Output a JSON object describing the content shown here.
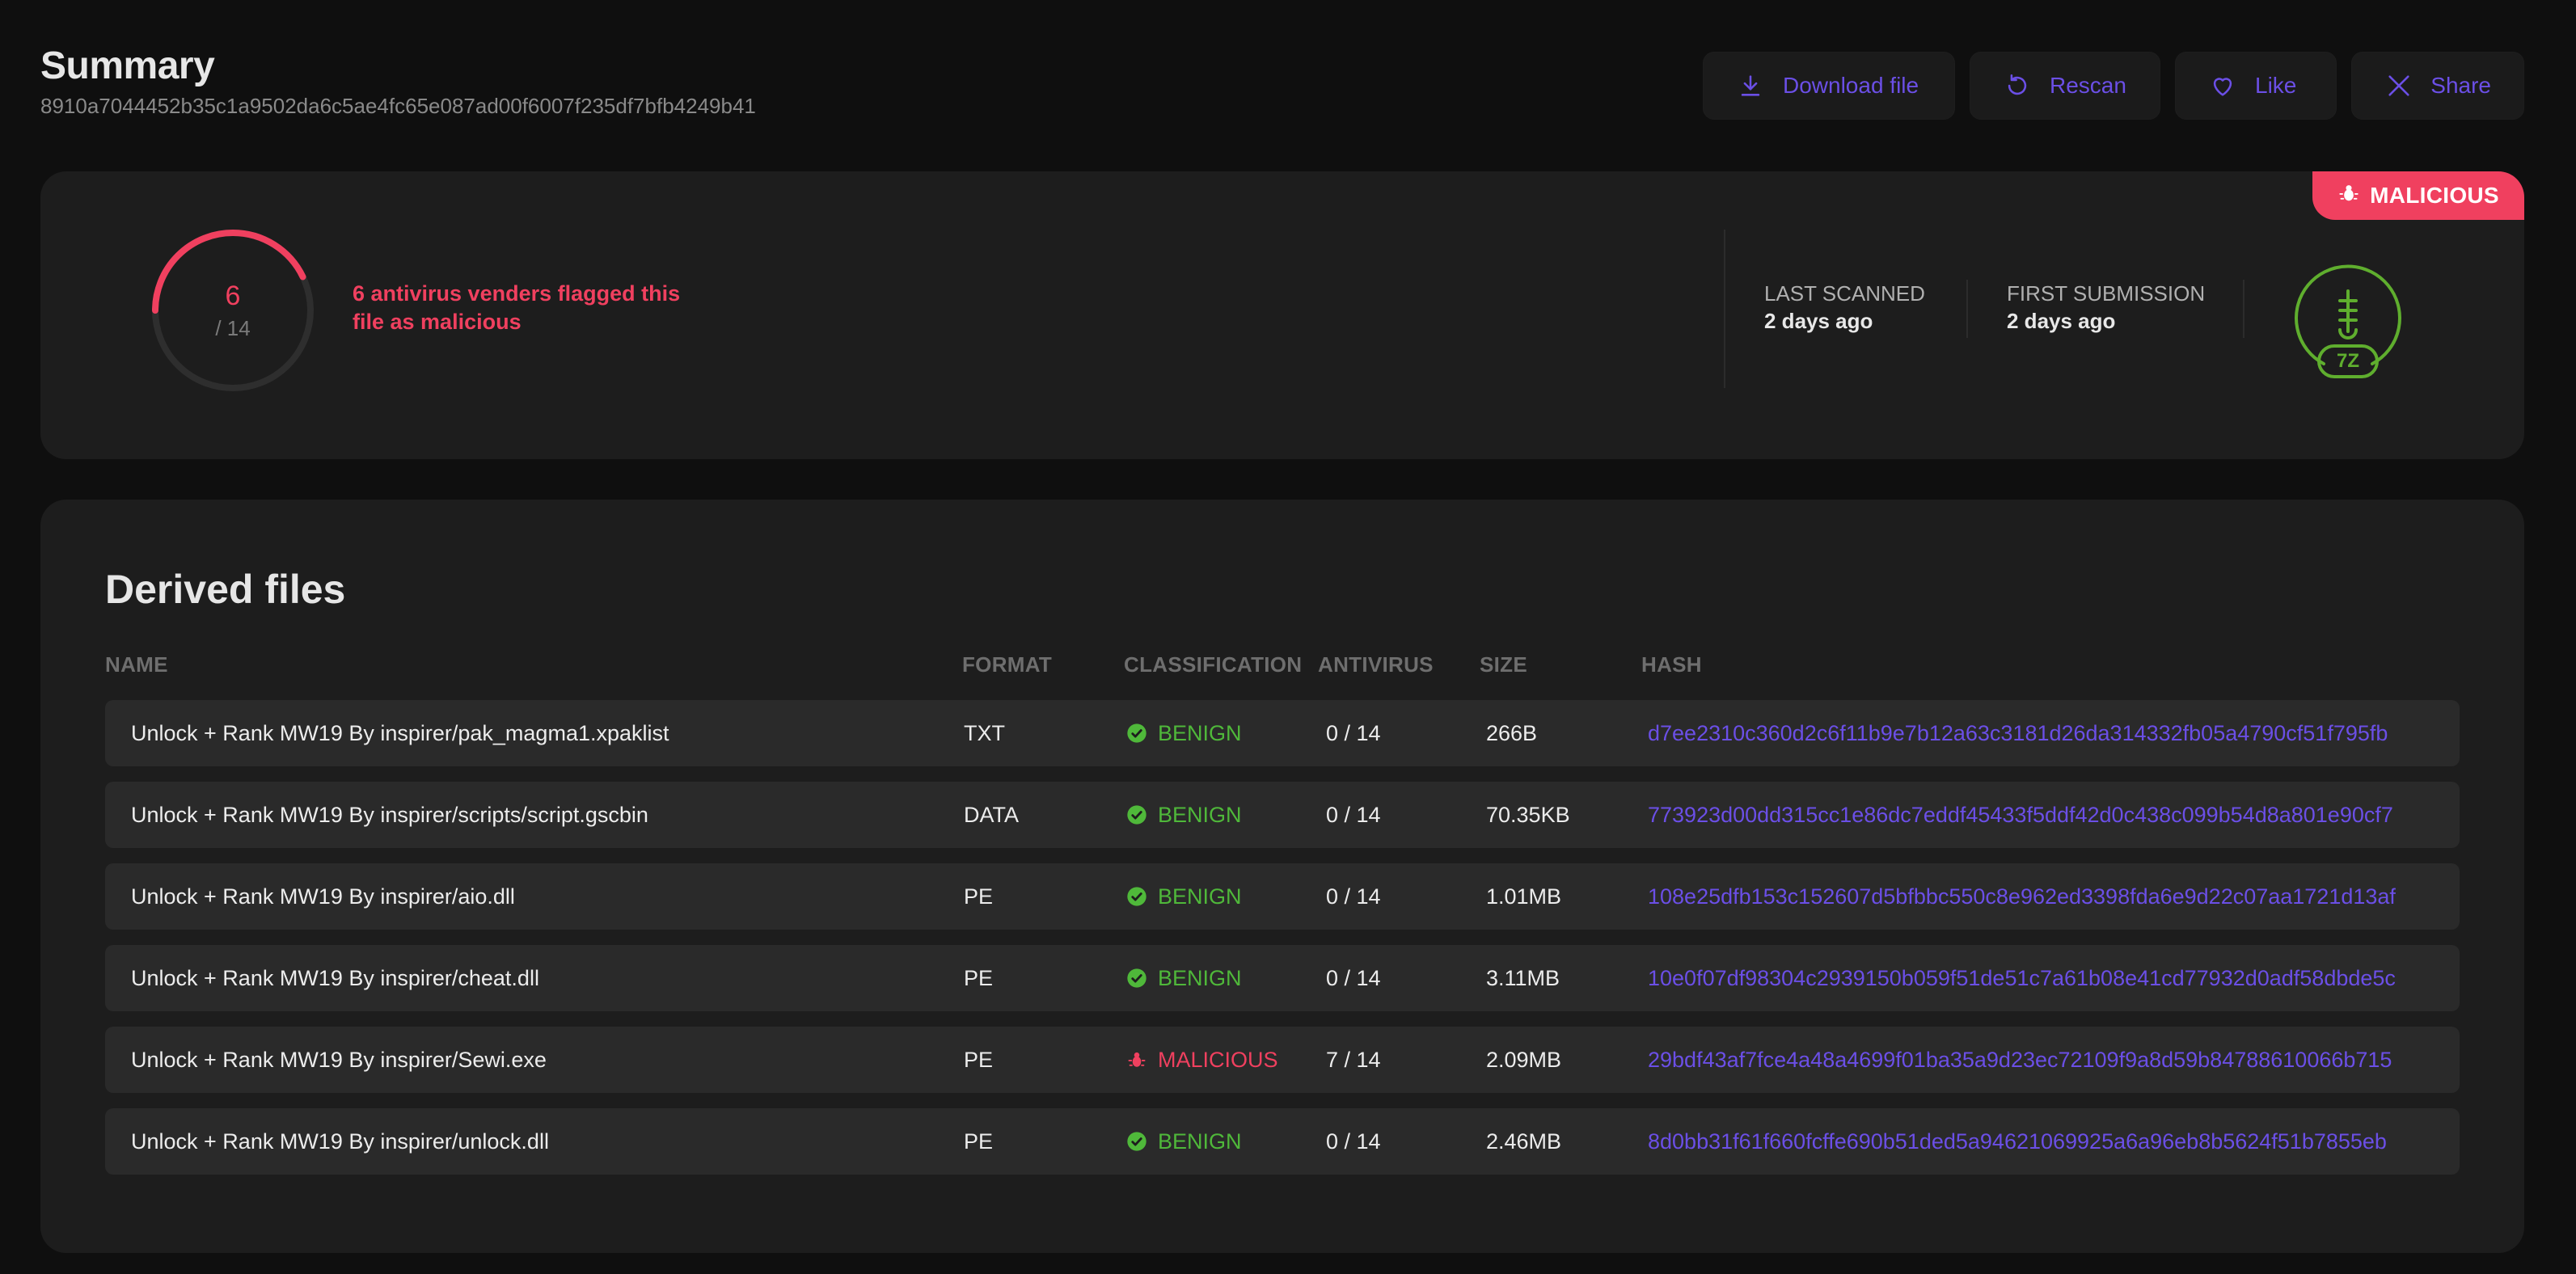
{
  "summary": {
    "title": "Summary",
    "hash": "8910a7044452b35c1a9502da6c5ae4fc65e087ad00f6007f235df7bfb4249b41"
  },
  "actions": {
    "download": {
      "label": "Download file",
      "icon": "download-icon"
    },
    "rescan": {
      "label": "Rescan",
      "icon": "rescan-icon"
    },
    "like": {
      "label": "Like",
      "icon": "heart-icon"
    },
    "share": {
      "label": "Share",
      "icon": "x-logo-icon"
    }
  },
  "detection": {
    "verdict": "MALICIOUS",
    "flagged": "6",
    "total": "/ 14",
    "flagged_fraction": 0.4286,
    "message": "6 antivirus venders flagged this file as malicious",
    "last_scanned_label": "LAST SCANNED",
    "last_scanned_value": "2 days ago",
    "first_submission_label": "FIRST SUBMISSION",
    "first_submission_value": "2 days ago",
    "file_type": "7Z"
  },
  "derived": {
    "title": "Derived files",
    "columns": [
      "NAME",
      "FORMAT",
      "CLASSIFICATION",
      "ANTIVIRUS",
      "SIZE",
      "HASH"
    ],
    "rows": [
      {
        "name": "Unlock + Rank MW19 By inspirer/pak_magma1.xpaklist",
        "format": "TXT",
        "classification": "BENIGN",
        "antivirus": "0 / 14",
        "size": "266B",
        "hash": "d7ee2310c360d2c6f11b9e7b12a63c3181d26da314332fb05a4790cf51f795fb"
      },
      {
        "name": "Unlock + Rank MW19 By inspirer/scripts/script.gscbin",
        "format": "DATA",
        "classification": "BENIGN",
        "antivirus": "0 / 14",
        "size": "70.35KB",
        "hash": "773923d00dd315cc1e86dc7eddf45433f5ddf42d0c438c099b54d8a801e90cf7"
      },
      {
        "name": "Unlock + Rank MW19 By inspirer/aio.dll",
        "format": "PE",
        "classification": "BENIGN",
        "antivirus": "0 / 14",
        "size": "1.01MB",
        "hash": "108e25dfb153c152607d5bfbbc550c8e962ed3398fda6e9d22c07aa1721d13af"
      },
      {
        "name": "Unlock + Rank MW19 By inspirer/cheat.dll",
        "format": "PE",
        "classification": "BENIGN",
        "antivirus": "0 / 14",
        "size": "3.11MB",
        "hash": "10e0f07df98304c2939150b059f51de51c7a61b08e41cd77932d0adf58dbde5c"
      },
      {
        "name": "Unlock + Rank MW19 By inspirer/Sewi.exe",
        "format": "PE",
        "classification": "MALICIOUS",
        "antivirus": "7 / 14",
        "size": "2.09MB",
        "hash": "29bdf43af7fce4a48a4699f01ba35a9d23ec72109f9a8d59b84788610066b715"
      },
      {
        "name": "Unlock + Rank MW19 By inspirer/unlock.dll",
        "format": "PE",
        "classification": "BENIGN",
        "antivirus": "0 / 14",
        "size": "2.46MB",
        "hash": "8d0bb31f61f660fcffe690b51ded5a94621069925a6a96eb8b5624f51b7855eb"
      }
    ]
  },
  "colors": {
    "accent": "#6b4fe6",
    "malicious": "#f0405f",
    "benign": "#4fb83a",
    "background": "#0f0f0f",
    "card": "#1d1d1d",
    "row": "#2a2a2a"
  }
}
